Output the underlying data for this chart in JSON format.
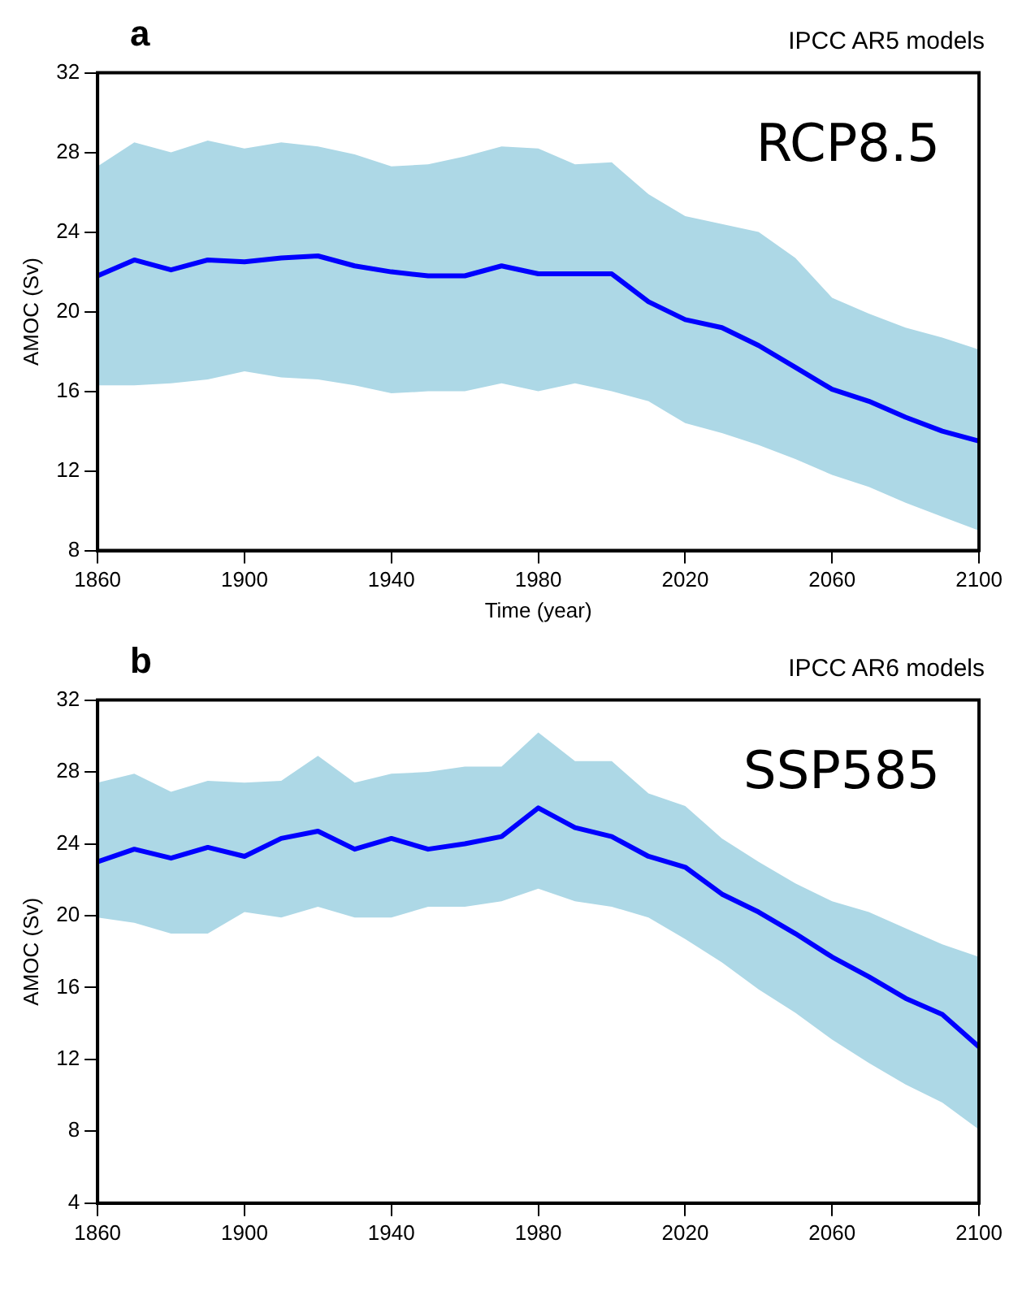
{
  "chart_data": [
    {
      "type": "line",
      "title": "a",
      "subtitle": "IPCC AR5 models",
      "xlabel": "Time (year)",
      "ylabel": "AMOC (Sv)",
      "annotations": [
        "RCP8.5"
      ],
      "x": [
        1860,
        1870,
        1880,
        1890,
        1900,
        1910,
        1920,
        1930,
        1940,
        1950,
        1960,
        1970,
        1980,
        1990,
        2000,
        2010,
        2020,
        2030,
        2040,
        2050,
        2060,
        2070,
        2080,
        2090,
        2100
      ],
      "series": [
        {
          "color": "#0000ff",
          "values": [
            21.8,
            22.6,
            22.1,
            22.6,
            22.5,
            22.7,
            22.8,
            22.3,
            22.0,
            21.8,
            21.8,
            22.3,
            21.9,
            21.9,
            21.9,
            20.5,
            19.6,
            19.2,
            18.3,
            17.2,
            16.1,
            15.5,
            14.7,
            14.0,
            13.5
          ],
          "lower": [
            16.3,
            16.3,
            16.4,
            16.6,
            17.0,
            16.7,
            16.6,
            16.3,
            15.9,
            16.0,
            16.0,
            16.4,
            16.0,
            16.4,
            16.0,
            15.5,
            14.4,
            13.9,
            13.3,
            12.6,
            11.8,
            11.2,
            10.4,
            9.7,
            9.0
          ],
          "upper": [
            27.3,
            28.5,
            28.0,
            28.6,
            28.2,
            28.5,
            28.3,
            27.9,
            27.3,
            27.4,
            27.8,
            28.3,
            28.2,
            27.4,
            27.5,
            25.9,
            24.8,
            24.4,
            24.0,
            22.7,
            20.7,
            19.9,
            19.2,
            18.7,
            18.1
          ]
        }
      ],
      "xlim": [
        1860,
        2100
      ],
      "xticks": [
        1860,
        1900,
        1940,
        1980,
        2020,
        2060,
        2100
      ],
      "ylim": [
        8,
        32
      ],
      "yticks": [
        8,
        12,
        16,
        20,
        24,
        28,
        32
      ]
    },
    {
      "type": "line",
      "title": "b",
      "subtitle": "IPCC AR6 models",
      "ylabel": "AMOC (Sv)",
      "annotations": [
        "SSP585"
      ],
      "x": [
        1860,
        1870,
        1880,
        1890,
        1900,
        1910,
        1920,
        1930,
        1940,
        1950,
        1960,
        1970,
        1980,
        1990,
        2000,
        2010,
        2020,
        2030,
        2040,
        2050,
        2060,
        2070,
        2080,
        2090,
        2100
      ],
      "series": [
        {
          "color": "#0000ff",
          "values": [
            23.0,
            23.7,
            23.2,
            23.8,
            23.3,
            24.3,
            24.7,
            23.7,
            24.3,
            23.7,
            24.0,
            24.4,
            26.0,
            24.9,
            24.4,
            23.3,
            22.7,
            21.2,
            20.2,
            19.0,
            17.7,
            16.6,
            15.4,
            14.5,
            12.7
          ],
          "lower": [
            19.9,
            19.6,
            19.0,
            19.0,
            20.2,
            19.9,
            20.5,
            19.9,
            19.9,
            20.5,
            20.5,
            20.8,
            21.5,
            20.8,
            20.5,
            19.9,
            18.7,
            17.4,
            15.9,
            14.6,
            13.1,
            11.8,
            10.6,
            9.6,
            8.1
          ],
          "upper": [
            27.4,
            27.9,
            26.9,
            27.5,
            27.4,
            27.5,
            28.9,
            27.4,
            27.9,
            28.0,
            28.3,
            28.3,
            30.2,
            28.6,
            28.6,
            26.8,
            26.1,
            24.3,
            23.0,
            21.8,
            20.8,
            20.2,
            19.3,
            18.4,
            17.7
          ]
        }
      ],
      "xlim": [
        1860,
        2100
      ],
      "xticks": [
        1860,
        1900,
        1940,
        1980,
        2020,
        2060,
        2100
      ],
      "ylim": [
        4,
        32
      ],
      "yticks": [
        4,
        8,
        12,
        16,
        20,
        24,
        28,
        32
      ]
    }
  ]
}
